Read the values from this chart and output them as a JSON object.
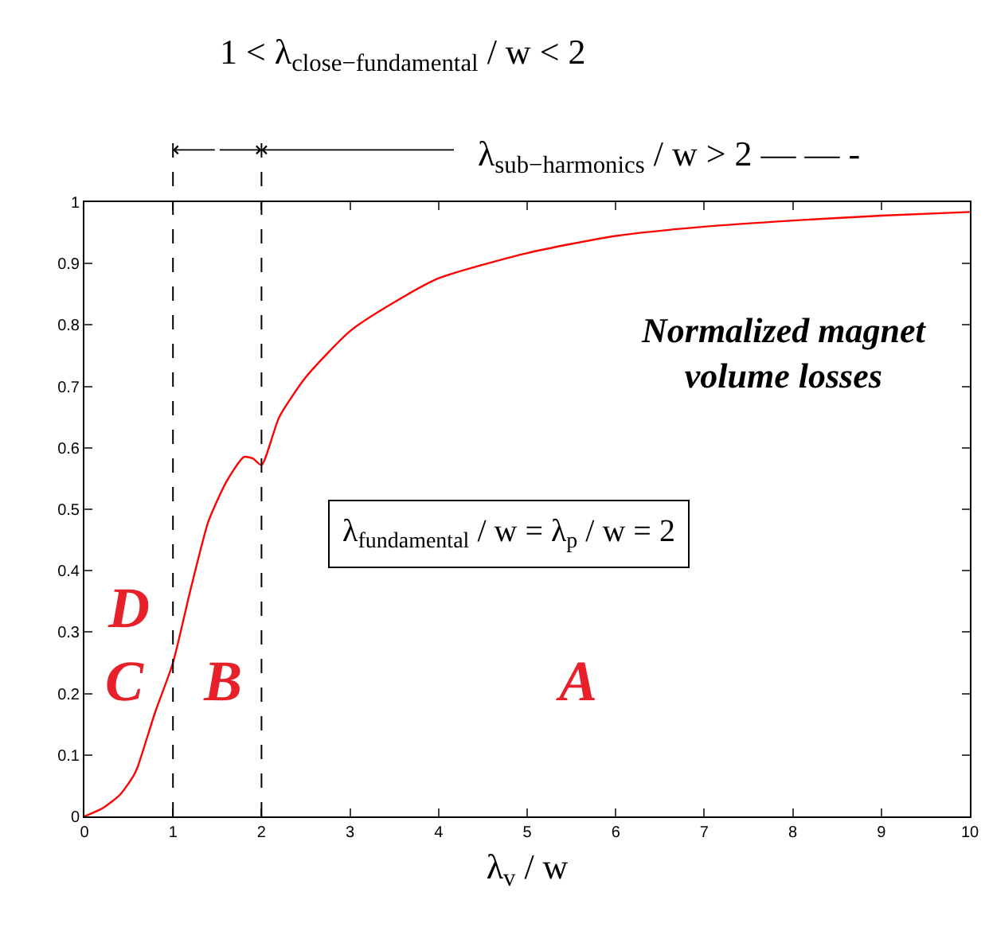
{
  "chart_data": {
    "type": "line",
    "xlabel": "λ$_{v}$ / w",
    "x": [
      0,
      0.2,
      0.4,
      0.55,
      0.6,
      0.8,
      1,
      1.2,
      1.4,
      1.6,
      1.8,
      1.9,
      2,
      2.2,
      2.5,
      3,
      3.5,
      4,
      5,
      6,
      7,
      8,
      9,
      10
    ],
    "series": [
      {
        "color": "#ff0000",
        "values": [
          0,
          0.013,
          0.035,
          0.065,
          0.08,
          0.17,
          0.25,
          0.37,
          0.48,
          0.544,
          0.585,
          0.583,
          0.572,
          0.65,
          0.715,
          0.79,
          0.837,
          0.876,
          0.917,
          0.945,
          0.96,
          0.97,
          0.978,
          0.984
        ]
      }
    ],
    "xlim": [
      0,
      10
    ],
    "xticks": [
      0,
      1,
      2,
      3,
      4,
      5,
      6,
      7,
      8,
      9,
      10
    ],
    "ylim": [
      0,
      1
    ],
    "yticks": [
      0,
      0.1,
      0.2,
      0.3,
      0.4,
      0.5,
      0.6,
      0.7,
      0.8,
      0.9,
      1
    ],
    "marker": "none",
    "line_style": "solid",
    "ref_lines": [
      {
        "axis": "x",
        "value": 1,
        "line_style": "dashed",
        "color": "#000000"
      },
      {
        "axis": "x",
        "value": 2,
        "line_style": "dashed",
        "color": "#000000"
      }
    ],
    "annotations": [
      "1 < λ$_{close−fundamental}$ / w < 2",
      "λ$_{sub−harmonics}$ / w > 2 — — -",
      "Normalized magnet volume losses",
      "λ$_{fundamental}$ / w = λ$_{p}$ / w = 2",
      "D",
      "C",
      "B",
      "A"
    ]
  }
}
